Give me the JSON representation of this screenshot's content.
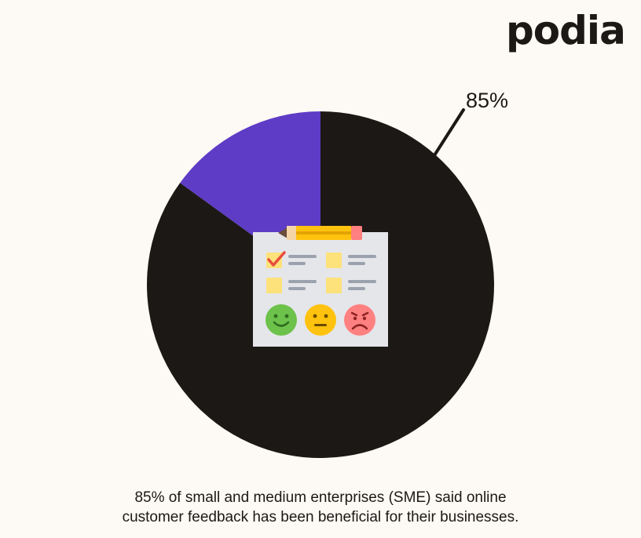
{
  "brand": {
    "logo_text": "podia"
  },
  "chart_data": {
    "type": "pie",
    "title": "",
    "slices": [
      {
        "value": 85,
        "color": "#1c1816"
      },
      {
        "value": 15,
        "color": "#5e3cc6"
      }
    ],
    "data_labels": [
      "85%"
    ]
  },
  "illustration": {
    "icon": "feedback-survey-clipboard-icon",
    "faces": [
      "happy-face-icon",
      "neutral-face-icon",
      "sad-face-icon"
    ],
    "colors": {
      "happy": "#6cc24a",
      "neutral": "#ffc20e",
      "sad": "#ff8080"
    }
  },
  "caption": {
    "line1": "85% of small and medium enterprises (SME) said online",
    "line2": "customer feedback has been beneficial for their businesses."
  }
}
